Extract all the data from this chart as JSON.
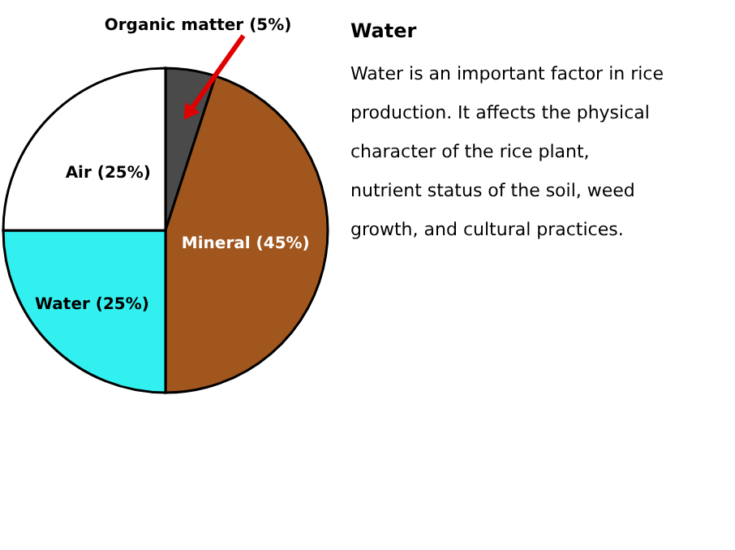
{
  "chart_data": {
    "type": "pie",
    "title": "Water",
    "categories": [
      "Organic matter (5%)",
      "Mineral (45%)",
      "Water (25%)",
      "Air (25%)"
    ],
    "values": [
      5,
      45,
      25,
      25
    ],
    "colors": [
      "#4a4a4a",
      "#a0561c",
      "#33f0f0",
      "#ffffff"
    ],
    "annotations": [
      "Water is an important factor in rice",
      "production. It affects the physical",
      "character of the rice plant,",
      "nutrient status of the soil, weed",
      "growth, and cultural practices."
    ]
  }
}
